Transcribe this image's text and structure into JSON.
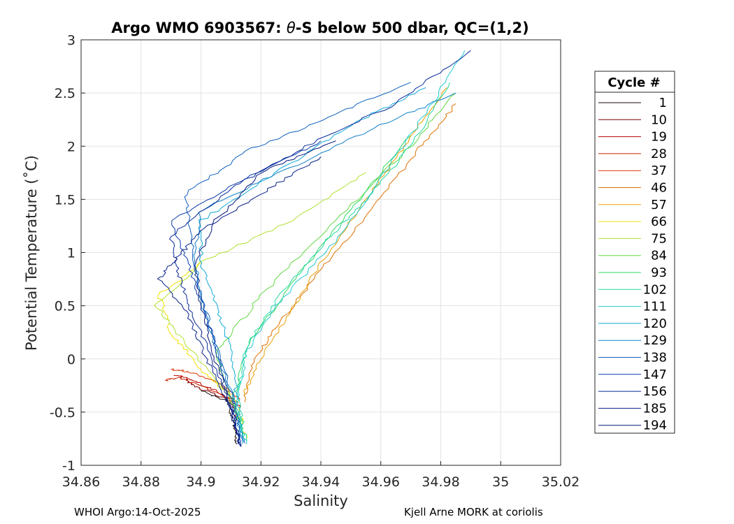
{
  "chart_data": {
    "type": "line",
    "title": "Argo WMO 6903567: θ-S below 500 dbar,  QC=(1,2)",
    "title_parts": {
      "prefix": "Argo WMO 6903567: ",
      "symbol": "θ",
      "suffix": "-S below 500 dbar,  QC=(1,2)"
    },
    "xlabel": "Salinity",
    "ylabel": "Potential Temperature (˚C)",
    "xlim": [
      34.86,
      35.02
    ],
    "ylim": [
      -1,
      3
    ],
    "xticks": [
      34.86,
      34.88,
      34.9,
      34.92,
      34.94,
      34.96,
      34.98,
      35,
      35.02
    ],
    "xtick_labels": [
      "34.86",
      "34.88",
      "34.9",
      "34.92",
      "34.94",
      "34.96",
      "34.98",
      "35",
      "35.02"
    ],
    "yticks": [
      3,
      2.5,
      2,
      1.5,
      1,
      0.5,
      0,
      -0.5,
      -1
    ],
    "ytick_labels": [
      "3",
      "2.5",
      "2",
      "1.5",
      "1",
      "0.5",
      "0",
      "-0.5",
      "-1"
    ],
    "grid": true,
    "legend": {
      "title": "Cycle #",
      "position": "outside-right",
      "entries": [
        "1",
        "10",
        "19",
        "28",
        "37",
        "46",
        "57",
        "66",
        "75",
        "84",
        "93",
        "102",
        "111",
        "120",
        "129",
        "138",
        "147",
        "156",
        "185",
        "194"
      ],
      "colors": [
        "#1a0a0a",
        "#7a0000",
        "#b30000",
        "#cc2200",
        "#dd3300",
        "#e07000",
        "#e8a000",
        "#f0e000",
        "#b0e030",
        "#60d840",
        "#30d860",
        "#20d8a0",
        "#20c8d0",
        "#10a8d8",
        "#1080c8",
        "#1060c0",
        "#0a3aa8",
        "#082a98",
        "#061f88",
        "#04157a"
      ]
    },
    "series": [
      {
        "name": "1",
        "color": "#1a0a0a",
        "points": [
          [
            34.912,
            -0.8
          ],
          [
            34.911,
            -0.6
          ],
          [
            34.909,
            -0.4
          ],
          [
            34.9,
            -0.3
          ]
        ]
      },
      {
        "name": "10",
        "color": "#7a0000",
        "points": [
          [
            34.913,
            -0.6
          ],
          [
            34.91,
            -0.4
          ],
          [
            34.9,
            -0.28
          ],
          [
            34.895,
            -0.2
          ]
        ]
      },
      {
        "name": "19",
        "color": "#b30000",
        "points": [
          [
            34.913,
            -0.45
          ],
          [
            34.905,
            -0.3
          ],
          [
            34.897,
            -0.2
          ],
          [
            34.891,
            -0.15
          ]
        ]
      },
      {
        "name": "28",
        "color": "#cc2200",
        "points": [
          [
            34.912,
            -0.4
          ],
          [
            34.9,
            -0.25
          ],
          [
            34.893,
            -0.18
          ],
          [
            34.888,
            -0.2
          ]
        ]
      },
      {
        "name": "37",
        "color": "#dd3300",
        "points": [
          [
            34.913,
            -0.38
          ],
          [
            34.906,
            -0.22
          ],
          [
            34.896,
            -0.12
          ],
          [
            34.89,
            -0.1
          ]
        ]
      },
      {
        "name": "46",
        "color": "#e07000",
        "points": [
          [
            34.914,
            -0.4
          ],
          [
            34.918,
            0.0
          ],
          [
            34.928,
            0.4
          ],
          [
            34.94,
            0.85
          ],
          [
            34.957,
            1.4
          ],
          [
            34.972,
            1.95
          ],
          [
            34.985,
            2.4
          ]
        ]
      },
      {
        "name": "57",
        "color": "#e8a000",
        "points": [
          [
            34.914,
            -0.35
          ],
          [
            34.92,
            0.0
          ],
          [
            34.93,
            0.45
          ],
          [
            34.94,
            0.9
          ],
          [
            34.955,
            1.5
          ],
          [
            34.968,
            2.0
          ],
          [
            34.982,
            2.55
          ]
        ]
      },
      {
        "name": "66",
        "color": "#f0e000",
        "points": [
          [
            34.915,
            -0.75
          ],
          [
            34.912,
            -0.4
          ],
          [
            34.9,
            -0.1
          ],
          [
            34.89,
            0.25
          ],
          [
            34.886,
            0.6
          ],
          [
            34.9,
            0.9
          ]
        ]
      },
      {
        "name": "75",
        "color": "#b0e030",
        "points": [
          [
            34.914,
            -0.6
          ],
          [
            34.908,
            -0.3
          ],
          [
            34.896,
            0.1
          ],
          [
            34.885,
            0.5
          ],
          [
            34.9,
            0.9
          ],
          [
            34.93,
            1.3
          ],
          [
            34.955,
            1.75
          ]
        ]
      },
      {
        "name": "84",
        "color": "#60d840",
        "points": [
          [
            34.914,
            -0.7
          ],
          [
            34.91,
            -0.35
          ],
          [
            34.905,
            0.05
          ],
          [
            34.92,
            0.6
          ],
          [
            34.945,
            1.3
          ],
          [
            34.97,
            2.0
          ],
          [
            34.985,
            2.5
          ]
        ]
      },
      {
        "name": "93",
        "color": "#30d860",
        "points": [
          [
            34.914,
            -0.75
          ],
          [
            34.911,
            -0.35
          ],
          [
            34.915,
            0.1
          ],
          [
            34.93,
            0.7
          ],
          [
            34.95,
            1.4
          ],
          [
            34.97,
            2.1
          ]
        ]
      },
      {
        "name": "102",
        "color": "#20d8a0",
        "points": [
          [
            34.915,
            -0.78
          ],
          [
            34.912,
            -0.35
          ],
          [
            34.915,
            0.1
          ],
          [
            34.925,
            0.55
          ],
          [
            34.94,
            1.05
          ],
          [
            34.955,
            1.5
          ],
          [
            34.97,
            2.0
          ],
          [
            34.983,
            2.6
          ]
        ]
      },
      {
        "name": "111",
        "color": "#20c8d0",
        "points": [
          [
            34.915,
            -0.8
          ],
          [
            34.912,
            -0.4
          ],
          [
            34.915,
            0.05
          ],
          [
            34.925,
            0.5
          ],
          [
            34.945,
            1.1
          ],
          [
            34.96,
            1.7
          ],
          [
            34.975,
            2.3
          ],
          [
            34.988,
            2.9
          ]
        ]
      },
      {
        "name": "120",
        "color": "#10a8d8",
        "points": [
          [
            34.914,
            -0.8
          ],
          [
            34.912,
            -0.4
          ],
          [
            34.91,
            0.1
          ],
          [
            34.905,
            0.5
          ],
          [
            34.9,
            0.9
          ],
          [
            34.9,
            1.3
          ],
          [
            34.925,
            1.75
          ],
          [
            34.95,
            2.2
          ],
          [
            34.975,
            2.55
          ]
        ]
      },
      {
        "name": "129",
        "color": "#1080c8",
        "points": [
          [
            34.914,
            -0.78
          ],
          [
            34.911,
            -0.4
          ],
          [
            34.905,
            0.1
          ],
          [
            34.9,
            0.55
          ],
          [
            34.898,
            1.0
          ],
          [
            34.9,
            1.4
          ],
          [
            34.93,
            1.8
          ],
          [
            34.96,
            2.2
          ],
          [
            34.985,
            2.5
          ]
        ]
      },
      {
        "name": "138",
        "color": "#1060c0",
        "points": [
          [
            34.914,
            -0.8
          ],
          [
            34.911,
            -0.4
          ],
          [
            34.905,
            0.15
          ],
          [
            34.9,
            0.6
          ],
          [
            34.897,
            1.05
          ],
          [
            34.895,
            1.55
          ],
          [
            34.915,
            1.95
          ],
          [
            34.945,
            2.3
          ],
          [
            34.97,
            2.6
          ]
        ]
      },
      {
        "name": "147",
        "color": "#0a3aa8",
        "points": [
          [
            34.913,
            -0.8
          ],
          [
            34.91,
            -0.4
          ],
          [
            34.905,
            0.1
          ],
          [
            34.9,
            0.55
          ],
          [
            34.895,
            0.95
          ],
          [
            34.89,
            1.3
          ],
          [
            34.915,
            1.7
          ],
          [
            34.94,
            2.05
          ]
        ]
      },
      {
        "name": "156",
        "color": "#082a98",
        "points": [
          [
            34.913,
            -0.82
          ],
          [
            34.91,
            -0.45
          ],
          [
            34.903,
            0.05
          ],
          [
            34.896,
            0.5
          ],
          [
            34.892,
            0.85
          ],
          [
            34.89,
            1.15
          ],
          [
            34.91,
            1.6
          ],
          [
            34.935,
            2.0
          ],
          [
            34.965,
            2.4
          ],
          [
            34.99,
            2.9
          ]
        ]
      },
      {
        "name": "185",
        "color": "#061f88",
        "points": [
          [
            34.913,
            -0.82
          ],
          [
            34.91,
            -0.45
          ],
          [
            34.902,
            0.0
          ],
          [
            34.895,
            0.45
          ],
          [
            34.886,
            0.75
          ],
          [
            34.892,
            0.95
          ],
          [
            34.9,
            1.2
          ],
          [
            34.92,
            1.55
          ],
          [
            34.94,
            1.9
          ]
        ]
      },
      {
        "name": "194",
        "color": "#04157a",
        "points": [
          [
            34.913,
            -0.82
          ],
          [
            34.91,
            -0.45
          ],
          [
            34.904,
            0.05
          ],
          [
            34.9,
            0.5
          ],
          [
            34.898,
            0.9
          ],
          [
            34.905,
            1.3
          ],
          [
            34.92,
            1.75
          ],
          [
            34.945,
            2.05
          ]
        ]
      }
    ]
  },
  "footer": {
    "left": "WHOI Argo:14-Oct-2025",
    "right": "Kjell Arne MORK at coriolis"
  }
}
